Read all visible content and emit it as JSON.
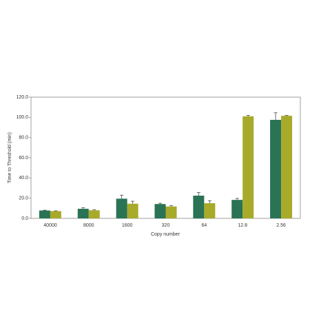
{
  "chart_data": {
    "type": "bar",
    "ylabel": "Time to Threshold (min)",
    "xlabel": "Copy number",
    "categories": [
      "40000",
      "8000",
      "1600",
      "320",
      "64",
      "12.8",
      "2.56"
    ],
    "series": [
      {
        "color": "#2a7355",
        "values": [
          7.8,
          9.5,
          19.5,
          14.2,
          22.5,
          18.3,
          97.5
        ],
        "errors": [
          0.3,
          1.0,
          3.5,
          0.8,
          3.0,
          1.5,
          7.0
        ]
      },
      {
        "color": "#a8aa2a",
        "values": [
          7.2,
          8.0,
          14.5,
          11.8,
          15.0,
          101.0,
          101.5
        ],
        "errors": [
          0.3,
          0.5,
          2.5,
          0.8,
          2.5,
          1.0,
          0.5
        ]
      }
    ],
    "ylim": [
      0,
      120
    ],
    "yticks": [
      {
        "value": 0,
        "label": "0.0"
      },
      {
        "value": 20,
        "label": "20.0"
      },
      {
        "value": 40,
        "label": "40.0"
      },
      {
        "value": 60,
        "label": "60.0"
      },
      {
        "value": 80,
        "label": "80.0"
      },
      {
        "value": 100,
        "label": "100.0"
      },
      {
        "value": 120,
        "label": "120.0"
      }
    ],
    "grid": false
  }
}
